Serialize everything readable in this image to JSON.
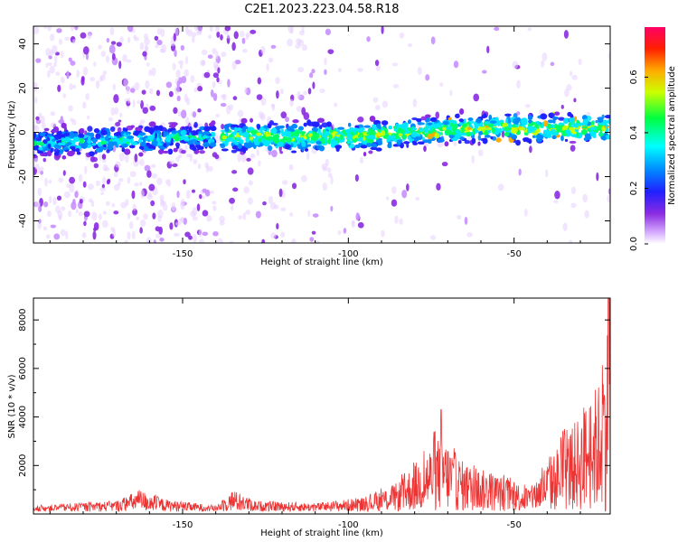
{
  "title": "C2E1.2023.223.04.58.R18",
  "chart_data": [
    {
      "type": "heatmap",
      "xlabel": "Height of straight line (km)",
      "ylabel": "Frequency (Hz)",
      "xlim": [
        -195,
        -21
      ],
      "ylim": [
        -50,
        48
      ],
      "xticks": [
        -150,
        -100,
        -50
      ],
      "yticks": [
        -40,
        -20,
        0,
        20,
        40
      ],
      "colorbar": {
        "label": "Normalized spectral amplitude",
        "range": [
          0,
          0.78
        ],
        "ticks": [
          0.0,
          0.2,
          0.4,
          0.6
        ]
      },
      "ridge": [
        {
          "x": -195,
          "freq": -5
        },
        {
          "x": -140,
          "freq": -2
        },
        {
          "x": -100,
          "freq": -2
        },
        {
          "x": -60,
          "freq": 2
        },
        {
          "x": -21,
          "freq": 2
        }
      ]
    },
    {
      "type": "line",
      "xlabel": "Height of straight line (km)",
      "ylabel": "SNR (10 * v/v)",
      "xlim": [
        -195,
        -21
      ],
      "ylim": [
        0,
        8900
      ],
      "xticks": [
        -150,
        -100,
        -50
      ],
      "yticks": [
        2000,
        4000,
        6000,
        8000
      ],
      "color": "#ee3333",
      "envelope": [
        {
          "x": -195,
          "y": 250
        },
        {
          "x": -170,
          "y": 450
        },
        {
          "x": -163,
          "y": 900
        },
        {
          "x": -155,
          "y": 500
        },
        {
          "x": -140,
          "y": 250
        },
        {
          "x": -135,
          "y": 900
        },
        {
          "x": -128,
          "y": 450
        },
        {
          "x": -110,
          "y": 350
        },
        {
          "x": -95,
          "y": 600
        },
        {
          "x": -85,
          "y": 1200
        },
        {
          "x": -78,
          "y": 2300
        },
        {
          "x": -72,
          "y": 3200
        },
        {
          "x": -65,
          "y": 2000
        },
        {
          "x": -55,
          "y": 1500
        },
        {
          "x": -45,
          "y": 1000
        },
        {
          "x": -38,
          "y": 2500
        },
        {
          "x": -30,
          "y": 4000
        },
        {
          "x": -24,
          "y": 5500
        },
        {
          "x": -21,
          "y": 8800
        }
      ],
      "spikes": [
        {
          "x": -72,
          "y": 4300
        },
        {
          "x": -21.5,
          "y": 8900
        }
      ]
    }
  ]
}
